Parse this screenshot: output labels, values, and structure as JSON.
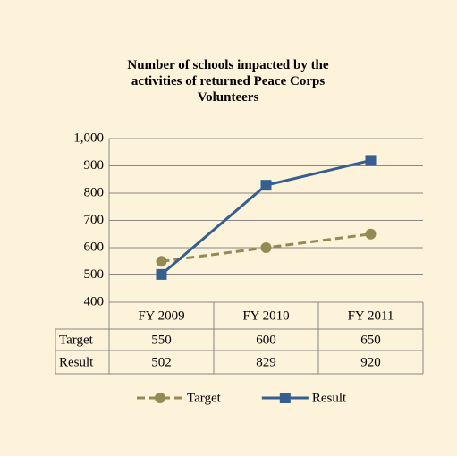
{
  "chart_data": {
    "type": "line",
    "title": "Number of schools impacted by the activities of returned Peace Corps Volunteers",
    "categories": [
      "FY 2009",
      "FY 2010",
      "FY 2011"
    ],
    "series": [
      {
        "name": "Target",
        "color": "#948a54",
        "dashed": true,
        "marker": "circle",
        "values": [
          550,
          600,
          650
        ]
      },
      {
        "name": "Result",
        "color": "#365f91",
        "dashed": false,
        "marker": "square",
        "values": [
          502,
          829,
          920
        ]
      }
    ],
    "ylim": [
      400,
      1000
    ],
    "yticks": [
      400,
      500,
      600,
      700,
      800,
      900,
      {
        "value": 1000,
        "label": "1,000"
      }
    ],
    "grid": true,
    "legend": "bottom"
  }
}
